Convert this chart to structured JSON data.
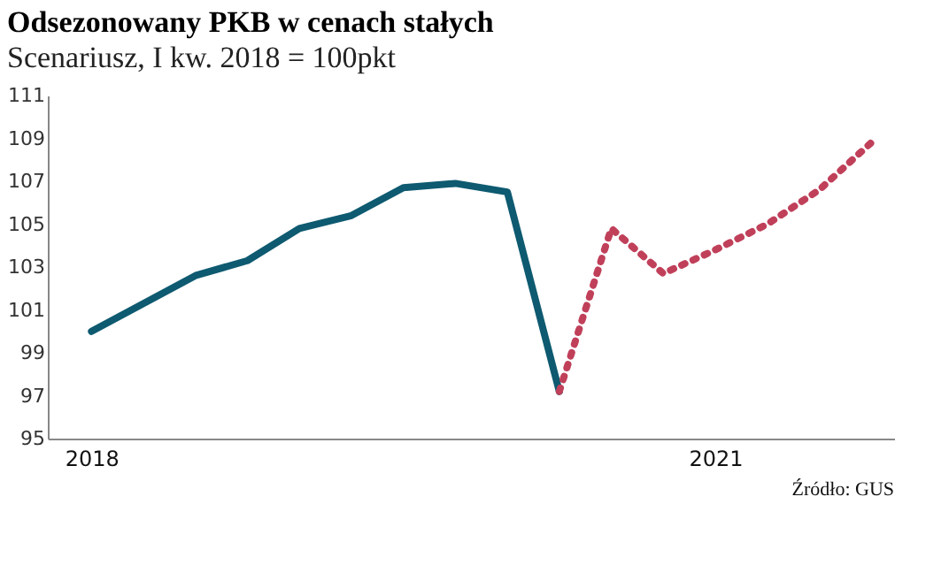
{
  "chart_data": {
    "type": "line",
    "title": "Odsezonowany PKB w cenach stałych",
    "subtitle": "Scenariusz, I kw. 2018 = 100pkt",
    "annotations": [
      "Źródło: GUS"
    ],
    "xlim": [
      2017.79,
      2021.86
    ],
    "xticks": [
      2018,
      2021
    ],
    "ylim": [
      95,
      111
    ],
    "yticks": [
      95,
      97,
      99,
      101,
      103,
      105,
      107,
      109,
      111
    ],
    "grid": false,
    "marker": "none",
    "series": [
      {
        "color": "#0e5a70",
        "line_style": "solid",
        "x": [
          2018,
          2018.25,
          2018.5,
          2018.75,
          2019,
          2019.25,
          2019.5,
          2019.75,
          2020,
          2020.25
        ],
        "values": [
          100,
          101.3,
          102.6,
          103.3,
          104.8,
          105.4,
          106.7,
          106.9,
          106.5,
          97.2
        ]
      },
      {
        "color": "#c0405a",
        "line_style": "dotted",
        "x": [
          2020.25,
          2020.5,
          2020.75,
          2021,
          2021.25,
          2021.5,
          2021.75
        ],
        "values": [
          97.2,
          104.8,
          102.7,
          103.8,
          105,
          106.6,
          108.8
        ]
      }
    ]
  }
}
